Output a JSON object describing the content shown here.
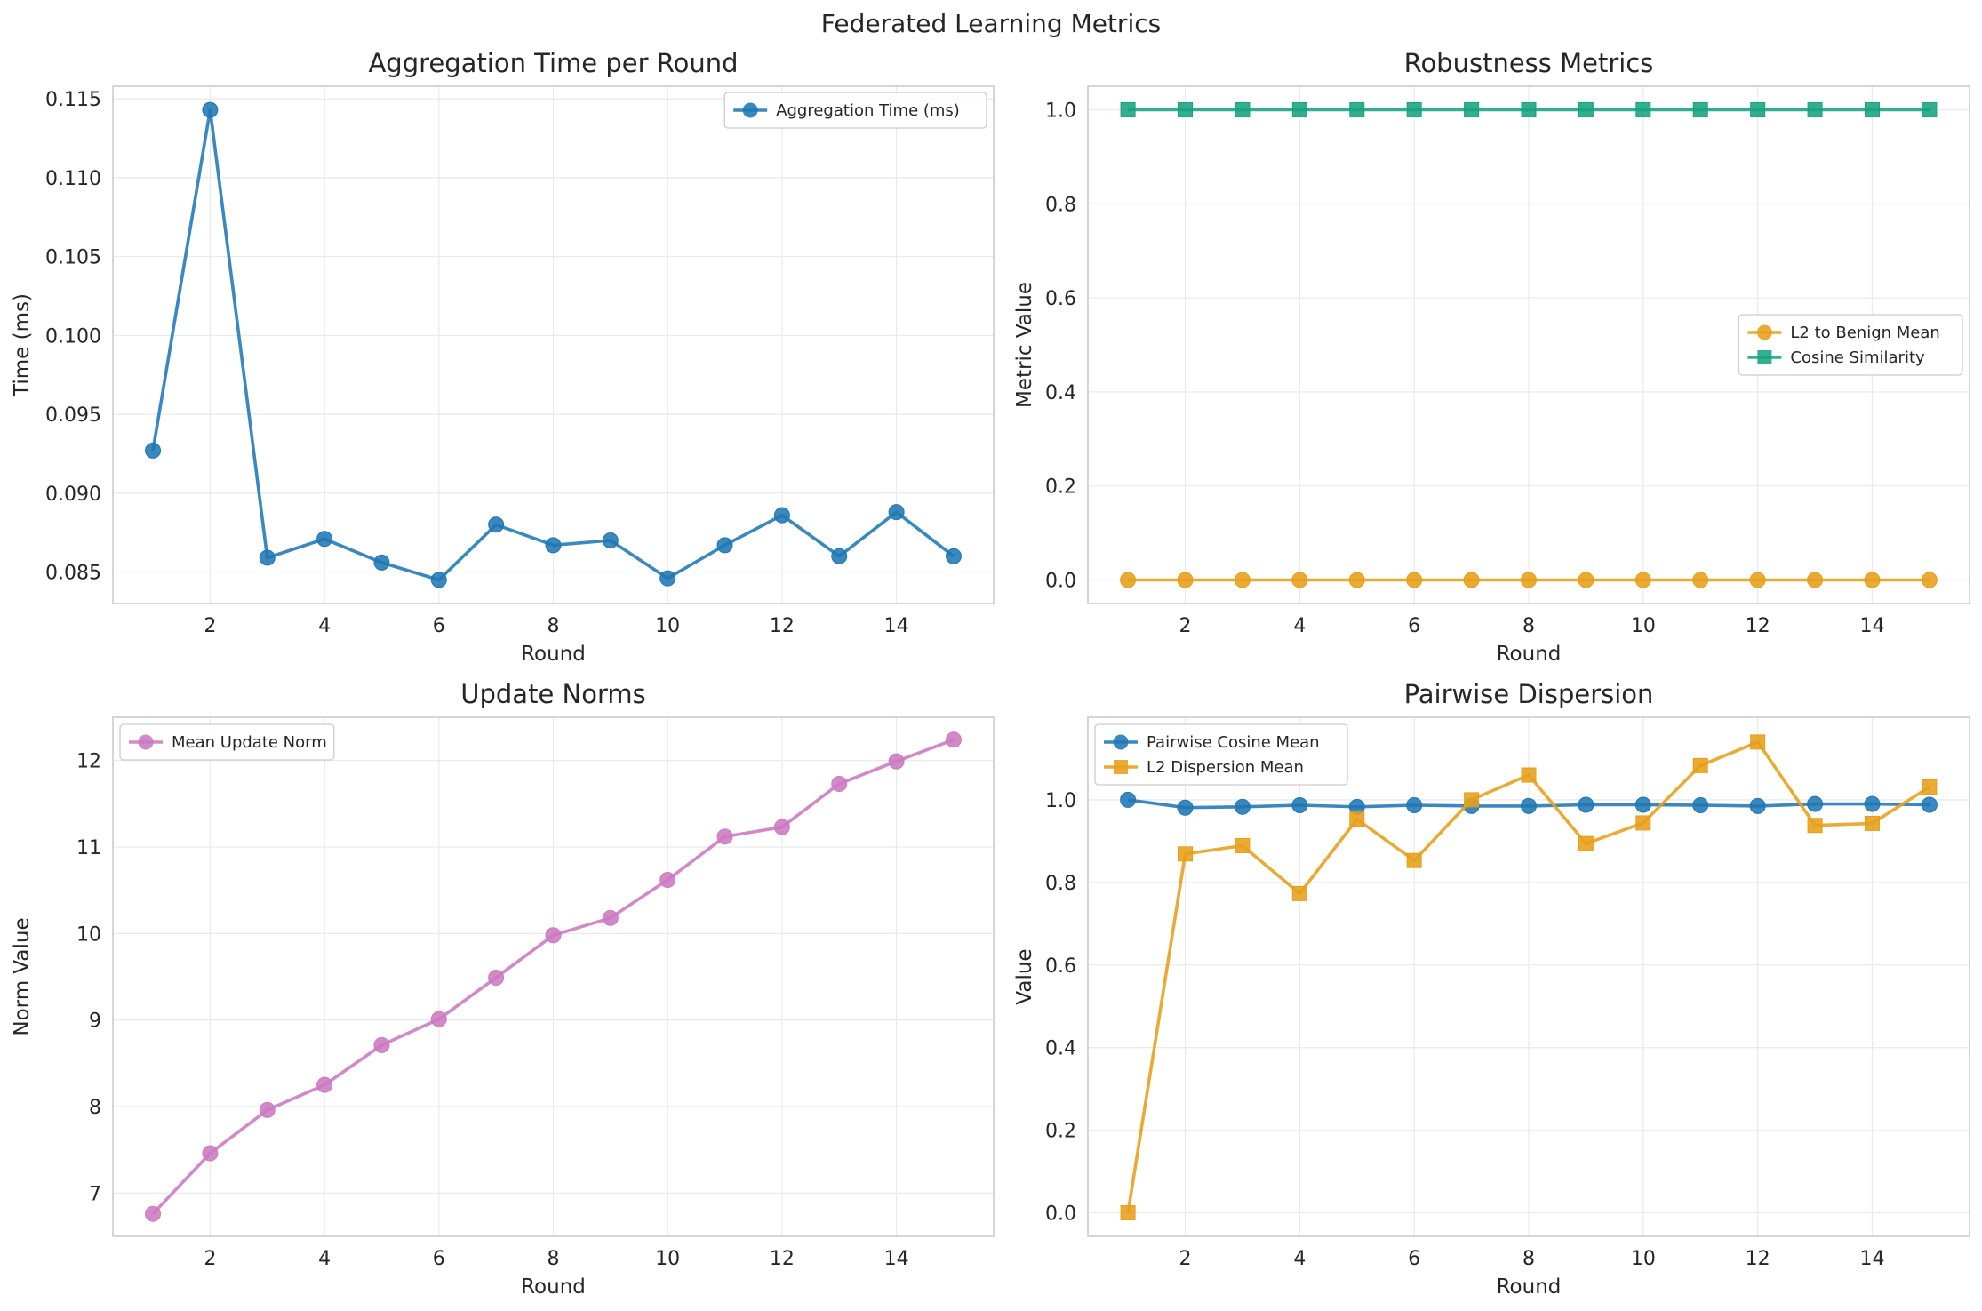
{
  "figure": {
    "suptitle": "Federated Learning Metrics"
  },
  "chart_data": [
    {
      "type": "line",
      "title": "Aggregation Time per Round",
      "xlabel": "Round",
      "ylabel": "Time (ms)",
      "xlim": [
        0.3,
        15.7
      ],
      "ylim": [
        0.083,
        0.1158
      ],
      "xticks": [
        2,
        4,
        6,
        8,
        10,
        12,
        14
      ],
      "yticks": [
        0.085,
        0.09,
        0.095,
        0.1,
        0.105,
        0.11,
        0.115
      ],
      "ytick_decimals": 3,
      "grid": true,
      "legend_position": "upper right",
      "x": [
        1,
        2,
        3,
        4,
        5,
        6,
        7,
        8,
        9,
        10,
        11,
        12,
        13,
        14,
        15
      ],
      "series": [
        {
          "name": "Aggregation Time (ms)",
          "color": "#1f77b4",
          "marker": "circle",
          "values": [
            0.0927,
            0.1143,
            0.0859,
            0.0871,
            0.0856,
            0.0845,
            0.088,
            0.0867,
            0.087,
            0.0846,
            0.0867,
            0.0886,
            0.086,
            0.0888,
            0.086
          ]
        }
      ]
    },
    {
      "type": "line",
      "title": "Robustness Metrics",
      "xlabel": "Round",
      "ylabel": "Metric Value",
      "xlim": [
        0.3,
        15.7
      ],
      "ylim": [
        -0.05,
        1.05
      ],
      "xticks": [
        2,
        4,
        6,
        8,
        10,
        12,
        14
      ],
      "yticks": [
        0.0,
        0.2,
        0.4,
        0.6,
        0.8,
        1.0
      ],
      "ytick_decimals": 1,
      "grid": true,
      "legend_position": "center right",
      "x": [
        1,
        2,
        3,
        4,
        5,
        6,
        7,
        8,
        9,
        10,
        11,
        12,
        13,
        14,
        15
      ],
      "series": [
        {
          "name": "L2 to Benign Mean",
          "color": "#e69f1a",
          "marker": "circle",
          "values": [
            0,
            0,
            0,
            0,
            0,
            0,
            0,
            0,
            0,
            0,
            0,
            0,
            0,
            0,
            0
          ]
        },
        {
          "name": "Cosine Similarity",
          "color": "#17a37f",
          "marker": "square",
          "values": [
            1,
            1,
            1,
            1,
            1,
            1,
            1,
            1,
            1,
            1,
            1,
            1,
            1,
            1,
            1
          ]
        }
      ]
    },
    {
      "type": "line",
      "title": "Update Norms",
      "xlabel": "Round",
      "ylabel": "Norm Value",
      "xlim": [
        0.3,
        15.7
      ],
      "ylim": [
        6.5,
        12.5
      ],
      "xticks": [
        2,
        4,
        6,
        8,
        10,
        12,
        14
      ],
      "yticks": [
        7,
        8,
        9,
        10,
        11,
        12
      ],
      "ytick_decimals": 0,
      "grid": true,
      "legend_position": "upper left",
      "x": [
        1,
        2,
        3,
        4,
        5,
        6,
        7,
        8,
        9,
        10,
        11,
        12,
        13,
        14,
        15
      ],
      "series": [
        {
          "name": "Mean Update Norm",
          "color": "#cc79c0",
          "marker": "circle",
          "values": [
            6.76,
            7.46,
            7.96,
            8.25,
            8.71,
            9.01,
            9.49,
            9.98,
            10.18,
            10.62,
            11.12,
            11.23,
            11.73,
            11.99,
            12.24
          ]
        }
      ]
    },
    {
      "type": "line",
      "title": "Pairwise Dispersion",
      "xlabel": "Round",
      "ylabel": "Value",
      "xlim": [
        0.3,
        15.7
      ],
      "ylim": [
        -0.057,
        1.2
      ],
      "xticks": [
        2,
        4,
        6,
        8,
        10,
        12,
        14
      ],
      "yticks": [
        0.0,
        0.2,
        0.4,
        0.6,
        0.8,
        1.0
      ],
      "ytick_decimals": 1,
      "grid": true,
      "legend_position": "upper left",
      "x": [
        1,
        2,
        3,
        4,
        5,
        6,
        7,
        8,
        9,
        10,
        11,
        12,
        13,
        14,
        15
      ],
      "series": [
        {
          "name": "Pairwise Cosine Mean",
          "color": "#1f77b4",
          "marker": "circle",
          "values": [
            1.0,
            0.981,
            0.983,
            0.987,
            0.983,
            0.987,
            0.985,
            0.985,
            0.988,
            0.988,
            0.987,
            0.985,
            0.99,
            0.99,
            0.988
          ]
        },
        {
          "name": "L2 Dispersion Mean",
          "color": "#e69f1a",
          "marker": "square",
          "values": [
            0.0,
            0.869,
            0.889,
            0.773,
            0.953,
            0.853,
            1.0,
            1.06,
            0.894,
            0.944,
            1.083,
            1.14,
            0.938,
            0.943,
            1.031
          ]
        }
      ]
    }
  ]
}
